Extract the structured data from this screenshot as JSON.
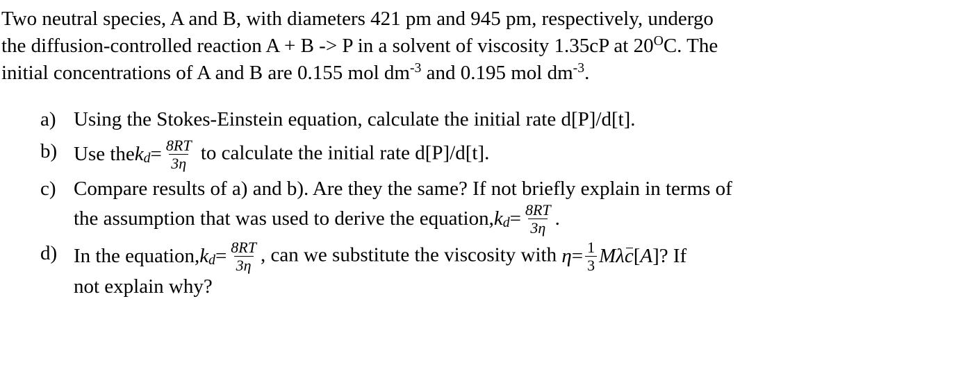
{
  "intro": {
    "line1": "Two neutral species, A and B, with diameters 421 pm and 945 pm, respectively, undergo",
    "line2_a": "the diffusion-controlled reaction A + B -> P in a solvent of viscosity 1.35cP at 20",
    "line2_deg": "O",
    "line2_b": "C. The",
    "line3_a": "initial concentrations of A and B are 0.155 mol dm",
    "line3_exp1": "-3",
    "line3_mid": " and 0.195 mol dm",
    "line3_exp2": "-3",
    "line3_end": "."
  },
  "items": {
    "a": {
      "marker": "a)",
      "text": "Using the Stokes-Einstein equation, calculate the initial rate d[P]/d[t]."
    },
    "b": {
      "marker": "b)",
      "lead": "Use the ",
      "kd_k": "k",
      "kd_sub": "d",
      "eq": " = ",
      "num": "8RT",
      "den": "3η",
      "tail": "  to calculate the initial rate d[P]/d[t]."
    },
    "c": {
      "marker": "c)",
      "line1": "Compare results of a) and b). Are they the same? If not briefly explain in terms of",
      "line2_lead": "the assumption that was used to derive the equation, ",
      "kd_k": "k",
      "kd_sub": "d",
      "eq": " = ",
      "num": "8RT",
      "den": "3η",
      "dot": "."
    },
    "d": {
      "marker": "d)",
      "lead": "In the equation, ",
      "kd_k": "k",
      "kd_sub": "d",
      "eq": " = ",
      "num": "8RT",
      "den": "3η",
      "mid": ", can we substitute the viscosity with ",
      "eta": "η",
      "eq2": " = ",
      "f_num": "1",
      "f_den": "3",
      "M": "M",
      "lambda": "λ",
      "cbar": "c",
      "bracket_open": "[",
      "A": "A",
      "bracket_close": "]? If",
      "line2": "not explain why?"
    }
  }
}
